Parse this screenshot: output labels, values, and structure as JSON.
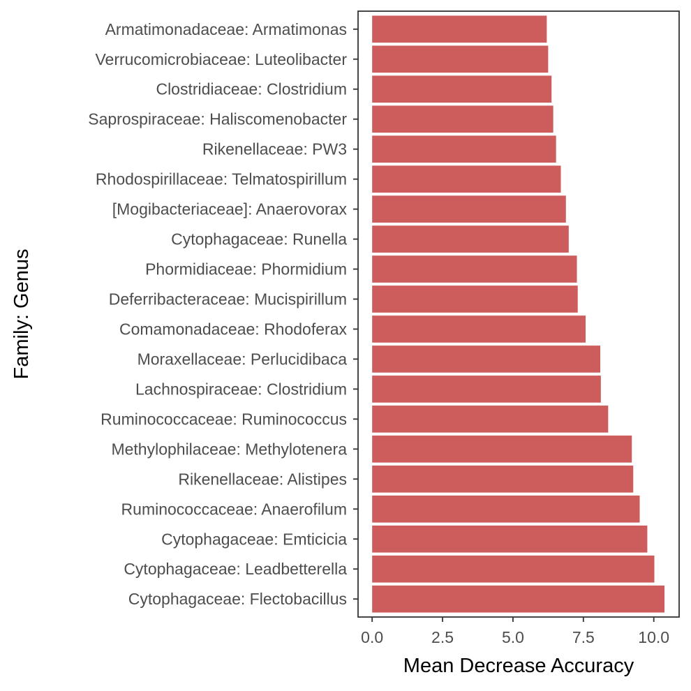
{
  "chart_data": {
    "type": "bar",
    "orientation": "horizontal",
    "xlabel": "Mean Decrease Accuracy",
    "ylabel": "Family: Genus",
    "xlim": [
      -0.5,
      10.9
    ],
    "x_ticks": [
      0.0,
      2.5,
      5.0,
      7.5,
      10.0
    ],
    "x_tick_labels": [
      "0.0",
      "2.5",
      "5.0",
      "7.5",
      "10.0"
    ],
    "grid": false,
    "bar_color": "#cd5c5c",
    "categories": [
      "Armatimonadaceae: Armatimonas",
      "Verrucomicrobiaceae: Luteolibacter",
      "Clostridiaceae: Clostridium",
      "Saprospiraceae: Haliscomenobacter",
      "Rikenellaceae: PW3",
      "Rhodospirillaceae: Telmatospirillum",
      "[Mogibacteriaceae]: Anaerovorax",
      "Cytophagaceae: Runella",
      "Phormidiaceae: Phormidium",
      "Deferribacteraceae: Mucispirillum",
      "Comamonadaceae: Rhodoferax",
      "Moraxellaceae: Perlucidibaca",
      "Lachnospiraceae: Clostridium",
      "Ruminococcaceae: Ruminococcus",
      "Methylophilaceae: Methylotenera",
      "Rikenellaceae: Alistipes",
      "Ruminococcaceae: Anaerofilum",
      "Cytophagaceae: Emticicia",
      "Cytophagaceae: Leadbetterella",
      "Cytophagaceae: Flectobacillus"
    ],
    "values": [
      6.2,
      6.25,
      6.37,
      6.43,
      6.53,
      6.7,
      6.88,
      6.98,
      7.27,
      7.3,
      7.58,
      8.1,
      8.12,
      8.38,
      9.22,
      9.27,
      9.5,
      9.77,
      10.02,
      10.38
    ]
  }
}
